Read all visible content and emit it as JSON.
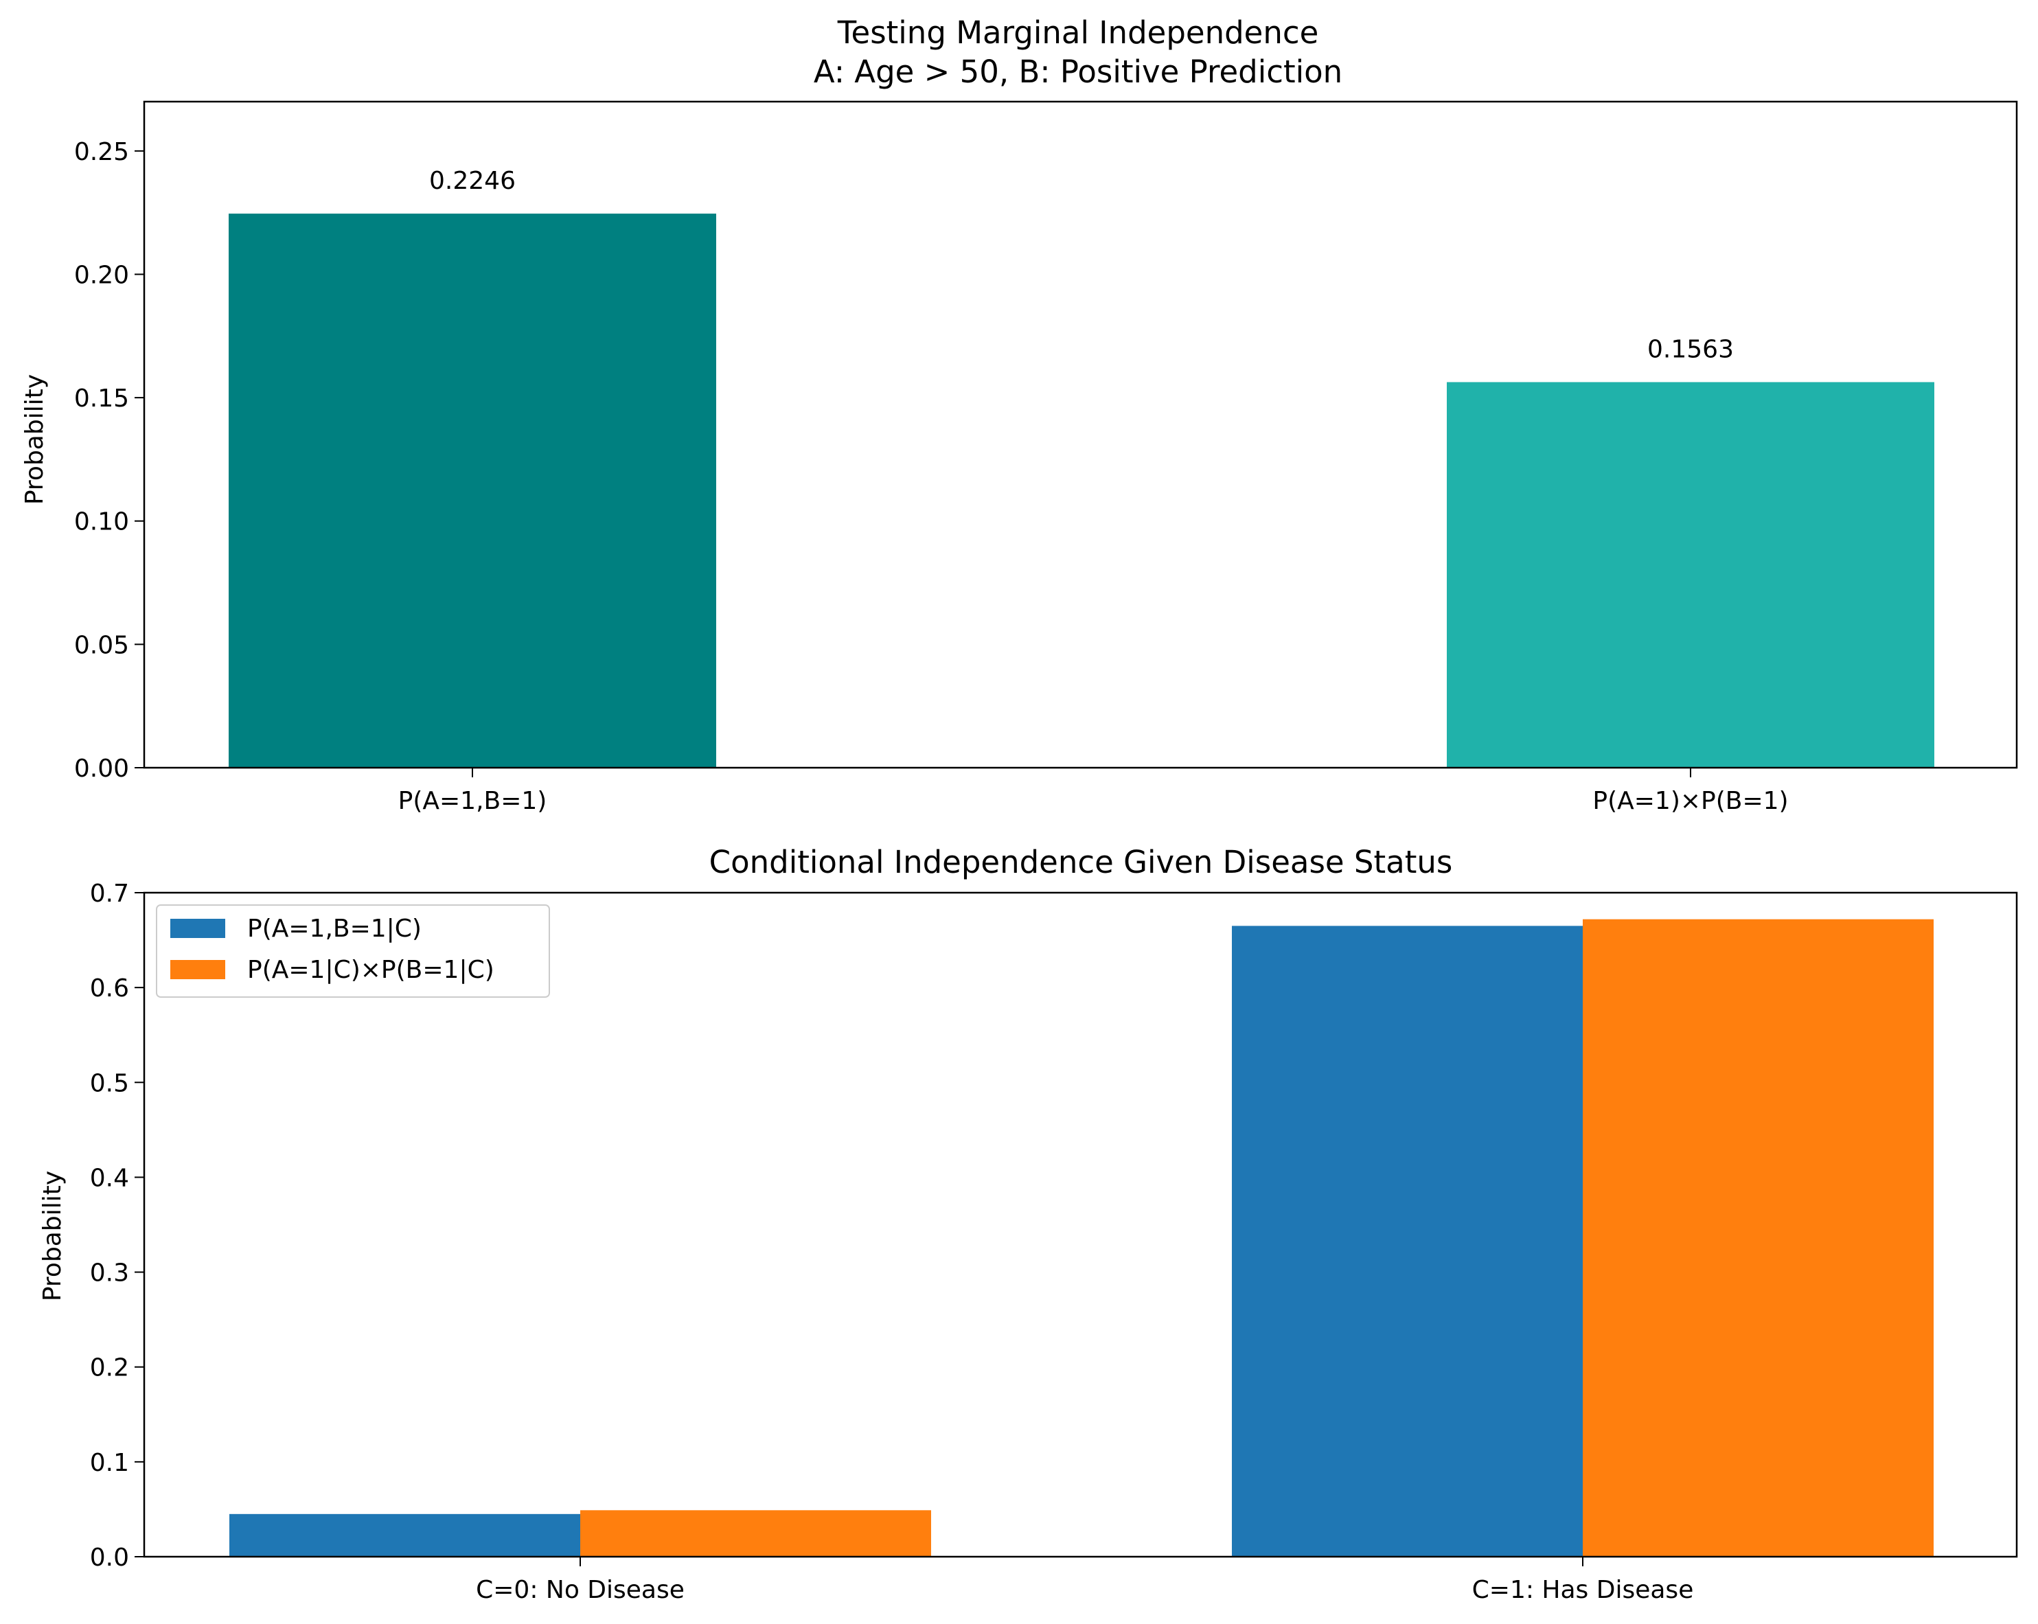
{
  "colors": {
    "teal": "#008080",
    "light_sea_green": "#20B2AA",
    "blue": "#1F77B4",
    "orange": "#FF7F0E"
  },
  "chart_data": [
    {
      "type": "bar",
      "title_lines": [
        "Testing Marginal Independence",
        "A: Age > 50, B: Positive Prediction"
      ],
      "xlabel": "",
      "ylabel": "Probability",
      "categories": [
        "P(A=1,B=1)",
        "P(A=1)×P(B=1)"
      ],
      "values": [
        0.2246,
        0.1563
      ],
      "data_labels": [
        "0.2246",
        "0.1563"
      ],
      "bar_colors": [
        "#008080",
        "#20B2AA"
      ],
      "ylim": [
        0,
        0.27
      ],
      "yticks": [
        0,
        0.05,
        0.1,
        0.15,
        0.2,
        0.25
      ],
      "ytick_labels": [
        "0.00",
        "0.05",
        "0.10",
        "0.15",
        "0.20",
        "0.25"
      ],
      "grid": false
    },
    {
      "type": "bar",
      "title": "Conditional Independence Given Disease Status",
      "xlabel": "",
      "ylabel": "Probability",
      "categories": [
        "C=0: No Disease",
        "C=1: Has Disease"
      ],
      "series": [
        {
          "name": "P(A=1,B=1|C)",
          "values": [
            0.045,
            0.665
          ],
          "color": "#1F77B4"
        },
        {
          "name": "P(A=1|C)×P(B=1|C)",
          "values": [
            0.049,
            0.672
          ],
          "color": "#FF7F0E"
        }
      ],
      "ylim": [
        0,
        0.7
      ],
      "yticks": [
        0,
        0.1,
        0.2,
        0.3,
        0.4,
        0.5,
        0.6,
        0.7
      ],
      "ytick_labels": [
        "0.0",
        "0.1",
        "0.2",
        "0.3",
        "0.4",
        "0.5",
        "0.6",
        "0.7"
      ],
      "legend_position": "top-left",
      "grid": false
    }
  ]
}
